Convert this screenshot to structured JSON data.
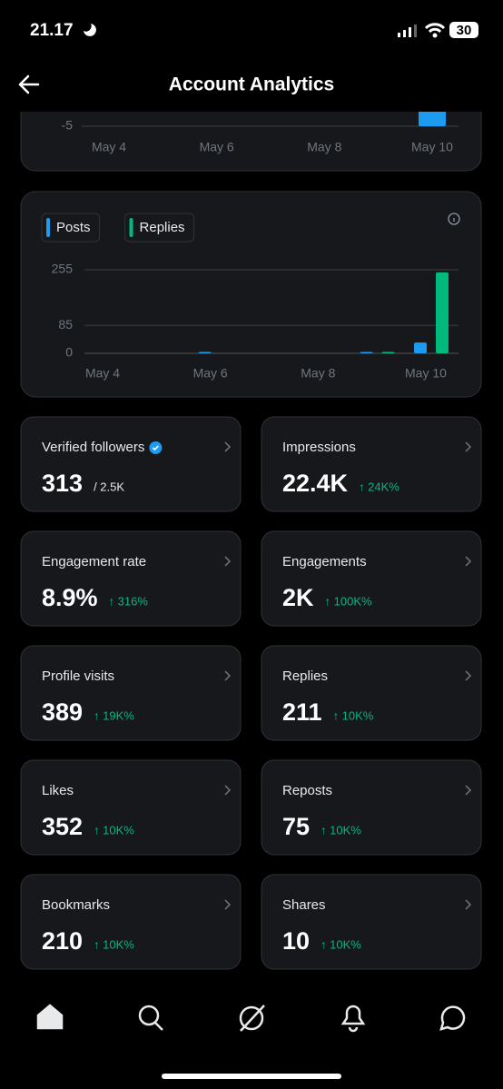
{
  "status_bar": {
    "time": "21.17",
    "battery": "30"
  },
  "header": {
    "title": "Account Analytics"
  },
  "chart_data": [
    {
      "type": "bar",
      "categories": [
        "May 4",
        null,
        "May 6",
        null,
        "May 8",
        null,
        "May 10"
      ],
      "series": [
        {
          "color": "#1d9bf0",
          "values": [
            null,
            null,
            null,
            null,
            null,
            null,
            -5
          ]
        }
      ],
      "ylim": [
        -6,
        50
      ],
      "yticks": [
        -5
      ],
      "grid": true
    },
    {
      "type": "bar",
      "categories": [
        "May 4",
        null,
        "May 6",
        null,
        "May 8",
        null,
        "May 10"
      ],
      "series": [
        {
          "name": "Posts",
          "color": "#1d9bf0",
          "values": [
            0,
            0,
            2,
            0,
            0,
            2,
            33
          ]
        },
        {
          "name": "Replies",
          "color": "#00ba7c",
          "values": [
            0,
            0,
            0,
            0,
            0,
            2,
            247
          ]
        }
      ],
      "ylim": [
        0,
        255
      ],
      "yticks": [
        0,
        85,
        255
      ],
      "grid": true,
      "legend": "top-left"
    }
  ],
  "metrics": [
    {
      "label": "Verified followers",
      "value": "313",
      "total": "/ 2.5K"
    },
    {
      "label": "Impressions",
      "value": "22.4K",
      "change": "↑ 24K%"
    },
    {
      "label": "Engagement rate",
      "value": "8.9%",
      "change": "↑ 316%"
    },
    {
      "label": "Engagements",
      "value": "2K",
      "change": "↑ 100K%"
    },
    {
      "label": "Profile visits",
      "value": "389",
      "change": "↑ 19K%"
    },
    {
      "label": "Replies",
      "value": "211",
      "change": "↑ 10K%"
    },
    {
      "label": "Likes",
      "value": "352",
      "change": "↑ 10K%"
    },
    {
      "label": "Reposts",
      "value": "75",
      "change": "↑ 10K%"
    },
    {
      "label": "Bookmarks",
      "value": "210",
      "change": "↑ 10K%"
    },
    {
      "label": "Shares",
      "value": "10",
      "change": "↑ 10K%"
    }
  ]
}
